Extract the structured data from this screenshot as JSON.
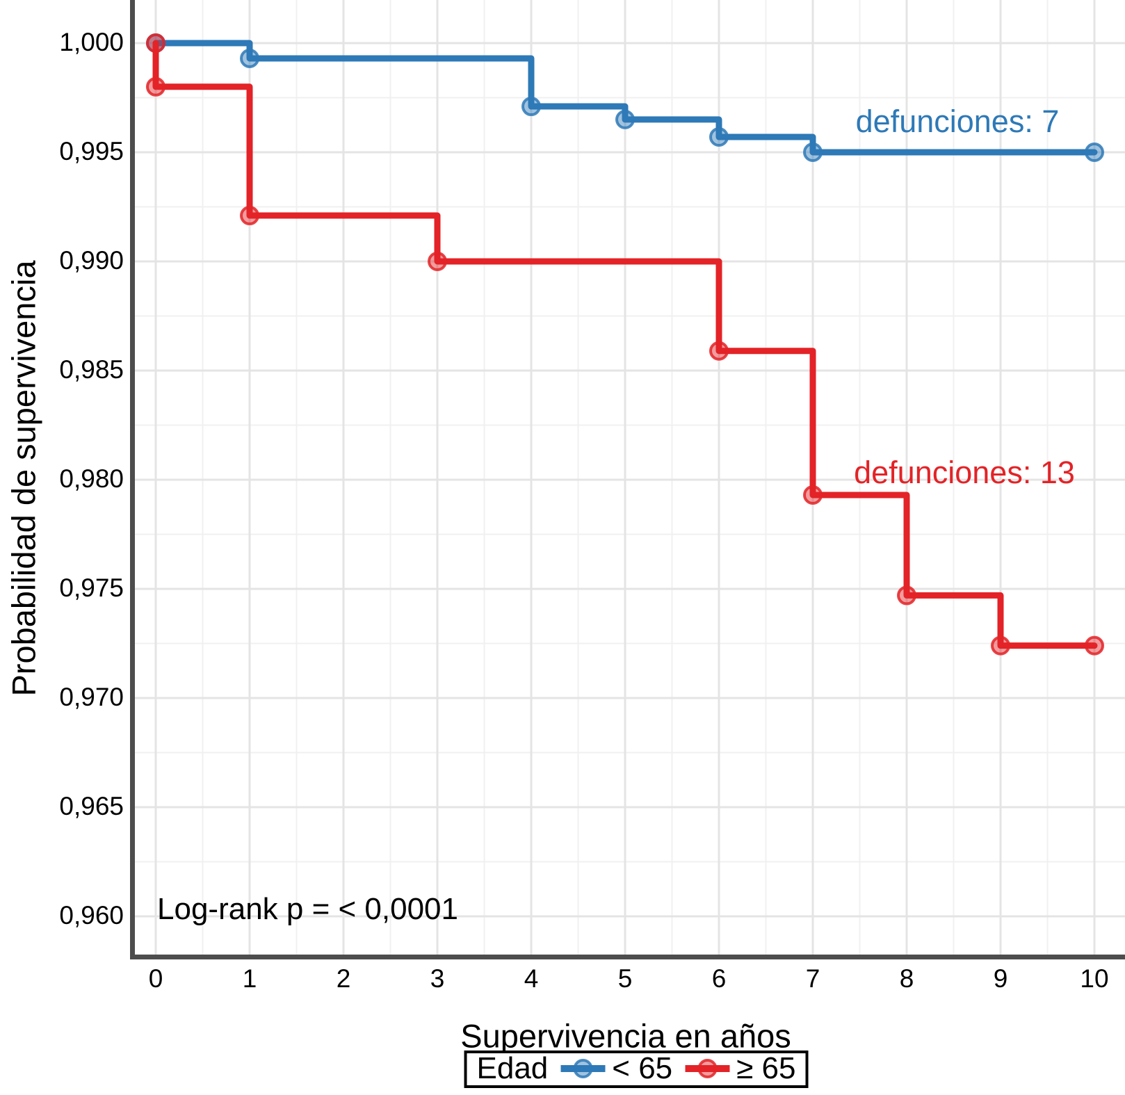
{
  "chart_data": {
    "type": "line",
    "subtype": "kaplan-meier-step",
    "title": "",
    "xlabel": "Supervivencia en años",
    "ylabel": "Probabilidad de supervivencia",
    "xlim": [
      0,
      10
    ],
    "ylim": [
      0.96,
      1.0
    ],
    "grid": true,
    "legend_position": "bottom",
    "legend_title": "Edad",
    "stats_label": "Log-rank p = < 0,0001",
    "x_ticks": [
      {
        "label": "0",
        "value": 0
      },
      {
        "label": "1",
        "value": 1
      },
      {
        "label": "2",
        "value": 2
      },
      {
        "label": "3",
        "value": 3
      },
      {
        "label": "4",
        "value": 4
      },
      {
        "label": "5",
        "value": 5
      },
      {
        "label": "6",
        "value": 6
      },
      {
        "label": "7",
        "value": 7
      },
      {
        "label": "8",
        "value": 8
      },
      {
        "label": "9",
        "value": 9
      },
      {
        "label": "10",
        "value": 10
      }
    ],
    "y_ticks": [
      {
        "label": "1,000",
        "value": 1.0
      },
      {
        "label": "0,995",
        "value": 0.995
      },
      {
        "label": "0,990",
        "value": 0.99
      },
      {
        "label": "0,985",
        "value": 0.985
      },
      {
        "label": "0,980",
        "value": 0.98
      },
      {
        "label": "0,975",
        "value": 0.975
      },
      {
        "label": "0,970",
        "value": 0.97
      },
      {
        "label": "0,965",
        "value": 0.965
      },
      {
        "label": "0,960",
        "value": 0.96
      }
    ],
    "series": [
      {
        "name": "< 65",
        "color": "#2e79b7",
        "annotation": "defunciones: 7",
        "deaths": 7,
        "step_points": [
          [
            0,
            1.0
          ],
          [
            1,
            0.9993
          ],
          [
            4,
            0.9971
          ],
          [
            5,
            0.9965
          ],
          [
            6,
            0.9957
          ],
          [
            7,
            0.995
          ],
          [
            10,
            0.995
          ]
        ]
      },
      {
        "name": "≥ 65",
        "color": "#e32327",
        "annotation": "defunciones: 13",
        "deaths": 13,
        "step_points": [
          [
            0,
            1.0
          ],
          [
            0,
            0.998
          ],
          [
            1,
            0.9921
          ],
          [
            3,
            0.99
          ],
          [
            6,
            0.9859
          ],
          [
            7,
            0.9793
          ],
          [
            8,
            0.9747
          ],
          [
            9,
            0.9724
          ],
          [
            10,
            0.9724
          ]
        ]
      }
    ]
  }
}
